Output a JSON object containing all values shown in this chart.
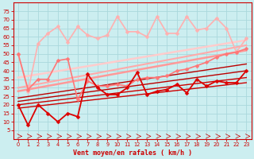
{
  "xlabel": "Vent moyen/en rafales ( km/h )",
  "ylabel": "",
  "bg_color": "#cceef0",
  "grid_color": "#aad8dc",
  "xlim": [
    -0.5,
    23.5
  ],
  "ylim": [
    0,
    80
  ],
  "yticks": [
    5,
    10,
    15,
    20,
    25,
    30,
    35,
    40,
    45,
    50,
    55,
    60,
    65,
    70,
    75
  ],
  "xticks": [
    0,
    1,
    2,
    3,
    4,
    5,
    6,
    7,
    8,
    9,
    10,
    11,
    12,
    13,
    14,
    15,
    16,
    17,
    18,
    19,
    20,
    21,
    22,
    23
  ],
  "lines": [
    {
      "x": [
        0,
        1,
        2,
        3,
        4,
        5,
        6,
        7,
        8,
        9,
        10,
        11,
        12,
        13,
        14,
        15,
        16,
        17,
        18,
        19,
        20,
        21,
        22,
        23
      ],
      "y": [
        20,
        8,
        20,
        15,
        10,
        15,
        13,
        38,
        30,
        26,
        26,
        30,
        39,
        26,
        28,
        29,
        32,
        27,
        35,
        31,
        34,
        33,
        33,
        40
      ],
      "color": "#dd0000",
      "lw": 1.3,
      "marker": "D",
      "ms": 2.5,
      "zorder": 8
    },
    {
      "x": [
        0,
        23
      ],
      "y": [
        18,
        33
      ],
      "color": "#cc0000",
      "lw": 1.0,
      "marker": null,
      "ms": 0,
      "zorder": 6
    },
    {
      "x": [
        0,
        23
      ],
      "y": [
        20,
        36
      ],
      "color": "#cc0000",
      "lw": 1.0,
      "marker": null,
      "ms": 0,
      "zorder": 6
    },
    {
      "x": [
        0,
        23
      ],
      "y": [
        22,
        40
      ],
      "color": "#bb0000",
      "lw": 1.0,
      "marker": null,
      "ms": 0,
      "zorder": 6
    },
    {
      "x": [
        0,
        23
      ],
      "y": [
        24,
        44
      ],
      "color": "#bb0000",
      "lw": 1.0,
      "marker": null,
      "ms": 0,
      "zorder": 6
    },
    {
      "x": [
        0,
        1,
        2,
        3,
        4,
        5,
        6,
        7,
        8,
        9,
        10,
        11,
        12,
        13,
        14,
        15,
        16,
        17,
        18,
        19,
        20,
        21,
        22,
        23
      ],
      "y": [
        50,
        29,
        35,
        35,
        46,
        47,
        23,
        34,
        31,
        31,
        32,
        31,
        35,
        36,
        36,
        37,
        40,
        41,
        43,
        45,
        48,
        50,
        51,
        53
      ],
      "color": "#ff7777",
      "lw": 1.2,
      "marker": "D",
      "ms": 2.5,
      "zorder": 7
    },
    {
      "x": [
        0,
        23
      ],
      "y": [
        28,
        52
      ],
      "color": "#ff9999",
      "lw": 1.8,
      "marker": null,
      "ms": 0,
      "zorder": 5
    },
    {
      "x": [
        0,
        23
      ],
      "y": [
        30,
        55
      ],
      "color": "#ffaaaa",
      "lw": 1.5,
      "marker": null,
      "ms": 0,
      "zorder": 5
    },
    {
      "x": [
        0,
        1,
        2,
        3,
        4,
        5,
        6,
        7,
        8,
        9,
        10,
        11,
        12,
        13,
        14,
        15,
        16,
        17,
        18,
        19,
        20,
        21,
        22,
        23
      ],
      "y": [
        50,
        28,
        56,
        62,
        66,
        57,
        66,
        61,
        59,
        61,
        72,
        63,
        63,
        60,
        72,
        62,
        62,
        72,
        64,
        65,
        71,
        65,
        51,
        59
      ],
      "color": "#ffb0b0",
      "lw": 1.2,
      "marker": "D",
      "ms": 2.5,
      "zorder": 6
    },
    {
      "x": [
        0,
        23
      ],
      "y": [
        36,
        58
      ],
      "color": "#ffcccc",
      "lw": 1.8,
      "marker": null,
      "ms": 0,
      "zorder": 4
    }
  ],
  "arrow_color": "#cc0000",
  "tick_color": "#cc0000",
  "axis_color": "#cc0000",
  "xlabel_color": "#cc0000"
}
